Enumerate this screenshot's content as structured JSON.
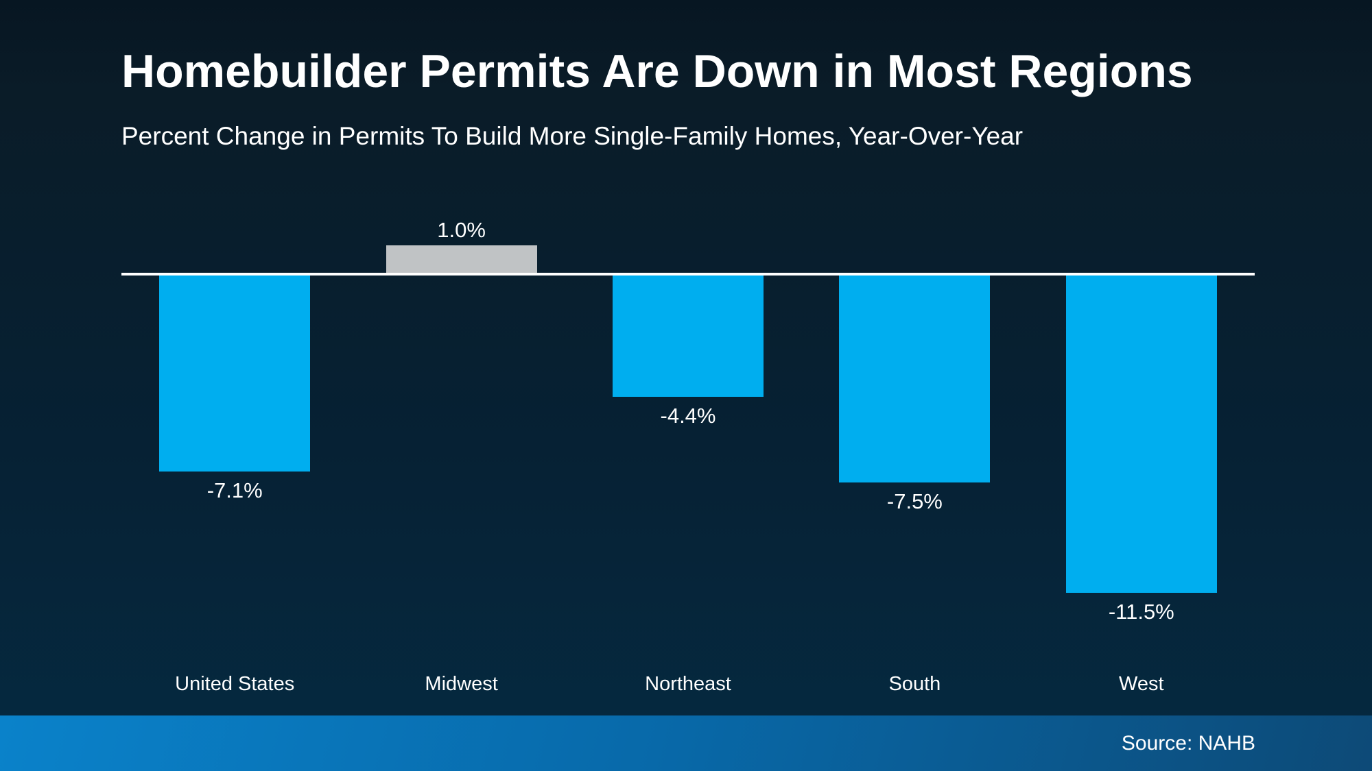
{
  "page": {
    "title": "Homebuilder Permits Are Down in Most Regions",
    "subtitle": "Percent Change in Permits To Build More Single-Family Homes, Year-Over-Year"
  },
  "footer": {
    "source_label": "Source: NAHB"
  },
  "chart_data": {
    "type": "bar",
    "title": "Homebuilder Permits Are Down in Most Regions",
    "subtitle": "Percent Change in Permits To Build More Single-Family Homes, Year-Over-Year",
    "categories": [
      "United States",
      "Midwest",
      "Northeast",
      "South",
      "West"
    ],
    "values": [
      -7.1,
      1.0,
      -4.4,
      -7.5,
      -11.5
    ],
    "value_labels": [
      "-7.1%",
      "1.0%",
      "-4.4%",
      "-7.5%",
      "-11.5%"
    ],
    "bar_colors": [
      "#00AEEF",
      "#C0C3C5",
      "#00AEEF",
      "#00AEEF",
      "#00AEEF"
    ],
    "colors": {
      "negative_bar": "#00AEEF",
      "positive_bar": "#C0C3C5",
      "axis": "#FFFFFF",
      "text": "#FFFFFF",
      "background_top": "#071622",
      "background_bottom": "#052A41",
      "footer_gradient_left": "#0A82CA",
      "footer_gradient_right": "#0D4A77"
    },
    "ylabel": "",
    "xlabel": "",
    "ylim": [
      -12.5,
      2.5
    ],
    "baseline": 0,
    "grid": false,
    "legend": false,
    "source": "Source: NAHB"
  }
}
